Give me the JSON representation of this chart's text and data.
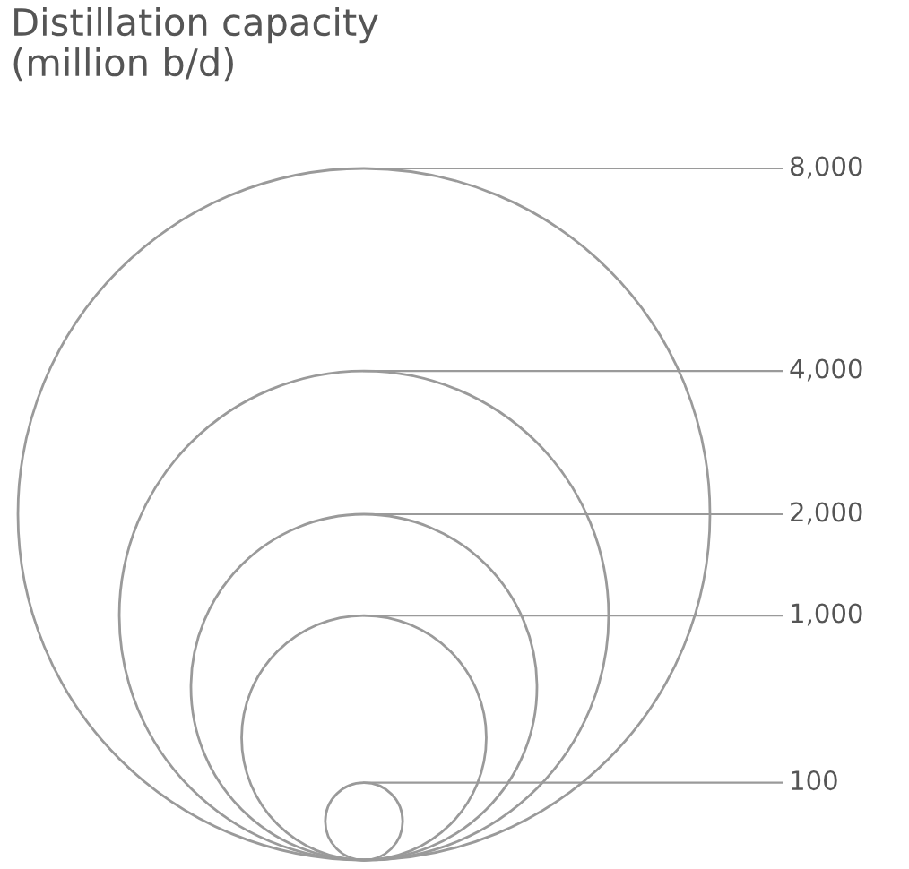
{
  "chart_data": {
    "type": "other",
    "title": "Distillation capacity\n(million b/d)",
    "values": [
      8000,
      4000,
      2000,
      1000,
      100
    ],
    "value_labels": [
      "8,000",
      "4,000",
      "2,000",
      "1,000",
      "100"
    ],
    "color": "#9a9a9a"
  }
}
